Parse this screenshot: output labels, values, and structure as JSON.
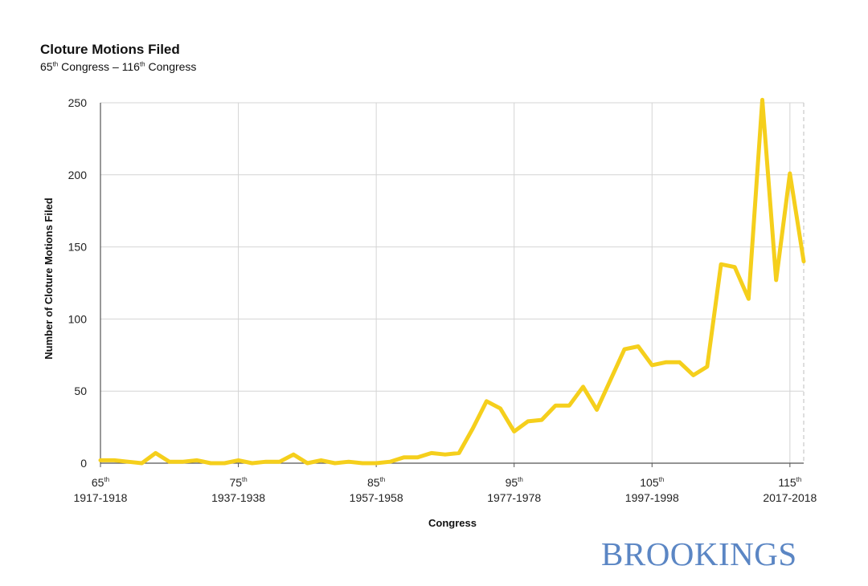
{
  "header": {
    "title": "Cloture Motions Filed",
    "subtitle_start_num": "65",
    "subtitle_start_sup": "th",
    "subtitle_mid": " Congress – ",
    "subtitle_end_num": "116",
    "subtitle_end_sup": "th",
    "subtitle_tail": " Congress"
  },
  "logo": "BROOKINGS",
  "colors": {
    "line": "#f5cf1c",
    "grid": "#d4d4d4",
    "axis": "#555555"
  },
  "chart_data": {
    "type": "line",
    "title": "Cloture Motions Filed",
    "subtitle": "65th Congress – 116th Congress",
    "xlabel": "Congress",
    "ylabel": "Number of Cloture Motions Filed",
    "ylim": [
      0,
      250
    ],
    "xlim": [
      65,
      116
    ],
    "yticks": [
      "0",
      "50",
      "100",
      "150",
      "200",
      "250"
    ],
    "xticks": [
      {
        "num": "65",
        "sup": "th",
        "years": "1917-1918"
      },
      {
        "num": "75",
        "sup": "th",
        "years": "1937-1938"
      },
      {
        "num": "85",
        "sup": "th",
        "years": "1957-1958"
      },
      {
        "num": "95",
        "sup": "th",
        "years": "1977-1978"
      },
      {
        "num": "105",
        "sup": "th",
        "years": "1997-1998"
      },
      {
        "num": "115",
        "sup": "th",
        "years": "2017-2018"
      }
    ],
    "grid": true,
    "x": [
      65,
      66,
      67,
      68,
      69,
      70,
      71,
      72,
      73,
      74,
      75,
      76,
      77,
      78,
      79,
      80,
      81,
      82,
      83,
      84,
      85,
      86,
      87,
      88,
      89,
      90,
      91,
      92,
      93,
      94,
      95,
      96,
      97,
      98,
      99,
      100,
      101,
      102,
      103,
      104,
      105,
      106,
      107,
      108,
      109,
      110,
      111,
      112,
      113,
      114,
      115,
      116
    ],
    "y": [
      2,
      2,
      1,
      0,
      7,
      1,
      1,
      2,
      0,
      0,
      2,
      0,
      1,
      1,
      6,
      0,
      2,
      0,
      1,
      0,
      0,
      1,
      4,
      4,
      7,
      6,
      7,
      24,
      43,
      38,
      22,
      29,
      30,
      40,
      40,
      53,
      37,
      58,
      79,
      81,
      68,
      70,
      70,
      61,
      67,
      138,
      136,
      114,
      252,
      127,
      201,
      140
    ]
  }
}
